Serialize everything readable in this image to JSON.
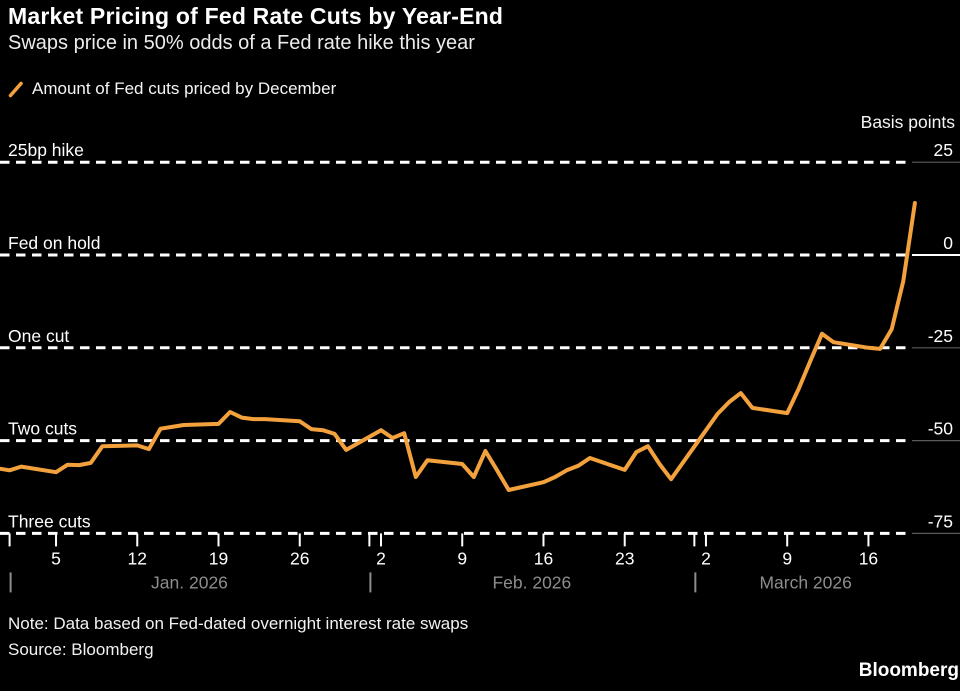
{
  "colors": {
    "background": "#000000",
    "line": "#F3A13D",
    "grid": "#FFFFFF",
    "grid_side_segment": "#5A5A5A",
    "zero_axis_segment": "#FFFFFF",
    "muted_text": "#8D8D8D",
    "text": "#FFFFFF"
  },
  "footer": {
    "note": "Note: Data based on Fed-dated overnight interest rate swaps",
    "source": "Source: Bloomberg",
    "logo": "Bloomberg"
  },
  "chart_data": {
    "type": "line",
    "title": "Market Pricing of Fed Rate Cuts by Year-End",
    "subtitle": "Swaps price in 50% odds of a Fed rate hike this year",
    "legend": {
      "swatch": "orange-slash",
      "label": "Amount of Fed cuts priced by December"
    },
    "grid": "horizontal-dashed",
    "legend_position": "top-left",
    "y_axis": {
      "unit_label": "Basis points",
      "side": "right",
      "ylim": [
        -94,
        31
      ],
      "gridlines": [
        {
          "value": 25,
          "left_label": "25bp hike",
          "tick_label": "25"
        },
        {
          "value": 0,
          "left_label": "Fed on hold",
          "tick_label": "0",
          "emphasized": true
        },
        {
          "value": -25,
          "left_label": "One cut",
          "tick_label": "-25"
        },
        {
          "value": -50,
          "left_label": "Two cuts",
          "tick_label": "-50"
        },
        {
          "value": -75,
          "left_label": "Three cuts",
          "tick_label": "-75"
        }
      ]
    },
    "x_axis": {
      "start": "2026-01-01",
      "end": "2026-03-20",
      "date_ticks": [
        {
          "date": "2026-01-05",
          "label": "5"
        },
        {
          "date": "2026-01-12",
          "label": "12"
        },
        {
          "date": "2026-01-19",
          "label": "19"
        },
        {
          "date": "2026-01-26",
          "label": "26"
        },
        {
          "date": "2026-02-02",
          "label": "2"
        },
        {
          "date": "2026-02-09",
          "label": "9"
        },
        {
          "date": "2026-02-16",
          "label": "16"
        },
        {
          "date": "2026-02-23",
          "label": "23"
        },
        {
          "date": "2026-03-02",
          "label": "2"
        },
        {
          "date": "2026-03-09",
          "label": "9"
        },
        {
          "date": "2026-03-16",
          "label": "16"
        }
      ],
      "months": [
        {
          "start": "2026-01-01",
          "label": "Jan. 2026"
        },
        {
          "start": "2026-02-01",
          "label": "Feb. 2026"
        },
        {
          "start": "2026-03-01",
          "label": "March 2026"
        }
      ]
    },
    "series": [
      {
        "name": "Amount of Fed cuts priced by December",
        "color": "#F3A13D",
        "points": [
          [
            "2025-12-31",
            -57.5
          ],
          [
            "2026-01-01",
            -58.0
          ],
          [
            "2026-01-02",
            -57.0
          ],
          [
            "2026-01-05",
            -58.5
          ],
          [
            "2026-01-06",
            -56.5
          ],
          [
            "2026-01-07",
            -56.6
          ],
          [
            "2026-01-08",
            -56.0
          ],
          [
            "2026-01-09",
            -51.5
          ],
          [
            "2026-01-12",
            -51.3
          ],
          [
            "2026-01-13",
            -52.3
          ],
          [
            "2026-01-14",
            -46.8
          ],
          [
            "2026-01-15",
            -46.3
          ],
          [
            "2026-01-16",
            -45.8
          ],
          [
            "2026-01-19",
            -45.5
          ],
          [
            "2026-01-20",
            -42.3
          ],
          [
            "2026-01-21",
            -43.8
          ],
          [
            "2026-01-22",
            -44.2
          ],
          [
            "2026-01-23",
            -44.2
          ],
          [
            "2026-01-26",
            -44.8
          ],
          [
            "2026-01-27",
            -46.9
          ],
          [
            "2026-01-28",
            -47.2
          ],
          [
            "2026-01-29",
            -48.2
          ],
          [
            "2026-01-30",
            -52.5
          ],
          [
            "2026-02-02",
            -47.2
          ],
          [
            "2026-02-03",
            -49.3
          ],
          [
            "2026-02-04",
            -48.0
          ],
          [
            "2026-02-05",
            -59.8
          ],
          [
            "2026-02-06",
            -55.3
          ],
          [
            "2026-02-09",
            -56.3
          ],
          [
            "2026-02-10",
            -59.8
          ],
          [
            "2026-02-11",
            -52.8
          ],
          [
            "2026-02-12",
            -58.0
          ],
          [
            "2026-02-13",
            -63.3
          ],
          [
            "2026-02-16",
            -61.2
          ],
          [
            "2026-02-17",
            -59.8
          ],
          [
            "2026-02-18",
            -58.0
          ],
          [
            "2026-02-19",
            -56.8
          ],
          [
            "2026-02-20",
            -54.7
          ],
          [
            "2026-02-23",
            -57.9
          ],
          [
            "2026-02-24",
            -53.1
          ],
          [
            "2026-02-25",
            -51.5
          ],
          [
            "2026-02-26",
            -56.3
          ],
          [
            "2026-02-27",
            -60.4
          ],
          [
            "2026-03-02",
            -47.2
          ],
          [
            "2026-03-03",
            -42.8
          ],
          [
            "2026-03-04",
            -39.6
          ],
          [
            "2026-03-05",
            -37.2
          ],
          [
            "2026-03-06",
            -41.2
          ],
          [
            "2026-03-09",
            -42.6
          ],
          [
            "2026-03-10",
            -36.0
          ],
          [
            "2026-03-11",
            -28.5
          ],
          [
            "2026-03-12",
            -21.2
          ],
          [
            "2026-03-13",
            -23.5
          ],
          [
            "2026-03-16",
            -25.0
          ],
          [
            "2026-03-17",
            -25.3
          ],
          [
            "2026-03-18",
            -20.0
          ],
          [
            "2026-03-19",
            -7.0
          ],
          [
            "2026-03-20",
            14.0
          ]
        ]
      }
    ]
  }
}
